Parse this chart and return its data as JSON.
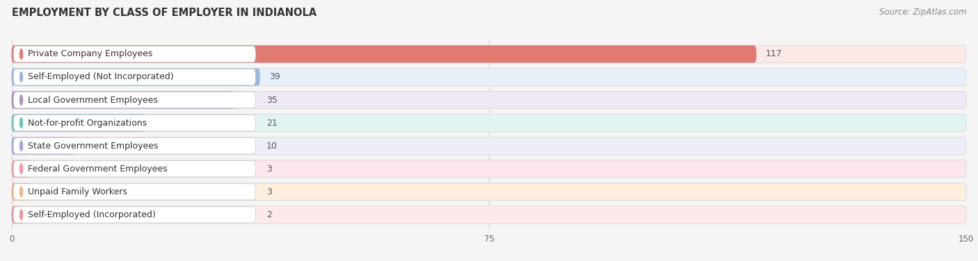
{
  "title": "EMPLOYMENT BY CLASS OF EMPLOYER IN INDIANOLA",
  "source": "Source: ZipAtlas.com",
  "categories": [
    "Private Company Employees",
    "Self-Employed (Not Incorporated)",
    "Local Government Employees",
    "Not-for-profit Organizations",
    "State Government Employees",
    "Federal Government Employees",
    "Unpaid Family Workers",
    "Self-Employed (Incorporated)"
  ],
  "values": [
    117,
    39,
    35,
    21,
    10,
    3,
    3,
    2
  ],
  "bar_colors": [
    "#e07b72",
    "#9ab8dc",
    "#b090c0",
    "#68c4bc",
    "#a8a8d8",
    "#f09aaa",
    "#f0b888",
    "#e89898"
  ],
  "bar_bg_colors": [
    "#fce9e8",
    "#e8f1fa",
    "#efe8f5",
    "#e2f4f2",
    "#eeeef8",
    "#fde6ee",
    "#fdeede",
    "#fceaea"
  ],
  "label_circle_colors": [
    "#e07b72",
    "#9ab8dc",
    "#b090c0",
    "#68c4bc",
    "#a8a8d8",
    "#f09aaa",
    "#f0b888",
    "#e89898"
  ],
  "xlim": [
    0,
    150
  ],
  "xticks": [
    0,
    75,
    150
  ],
  "background_color": "#f5f5f5",
  "title_fontsize": 10.5,
  "label_fontsize": 9,
  "value_fontsize": 9,
  "source_fontsize": 8.5
}
